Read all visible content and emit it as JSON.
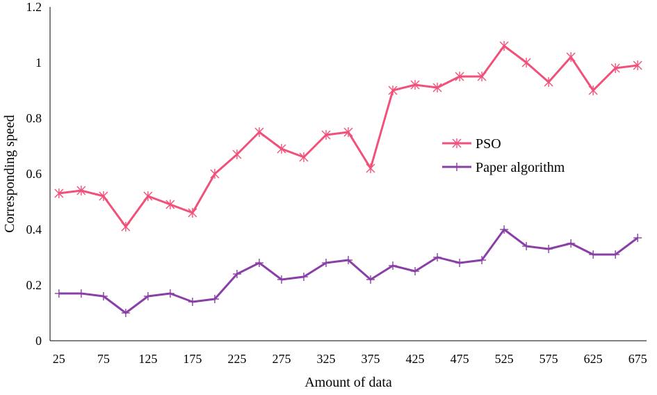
{
  "chart_data": {
    "type": "line",
    "title": "",
    "xlabel": "Amount of data",
    "ylabel": "Corresponding speed",
    "x": [
      25,
      50,
      75,
      100,
      125,
      150,
      175,
      200,
      225,
      250,
      275,
      300,
      325,
      350,
      375,
      400,
      425,
      450,
      475,
      500,
      525,
      550,
      575,
      600,
      625,
      650,
      675
    ],
    "x_tick_labels": [
      "25",
      "75",
      "125",
      "175",
      "225",
      "275",
      "325",
      "375",
      "425",
      "475",
      "525",
      "575",
      "625",
      "675"
    ],
    "y_tick_labels": [
      "0",
      "0.2",
      "0.4",
      "0.6",
      "0.8",
      "1",
      "1.2"
    ],
    "ylim": [
      0,
      1.2
    ],
    "grid": false,
    "legend_position": "center-right",
    "series": [
      {
        "name": "PSO",
        "color": "#f0507a",
        "marker": "asterisk",
        "values": [
          0.53,
          0.54,
          0.52,
          0.41,
          0.52,
          0.49,
          0.46,
          0.6,
          0.67,
          0.75,
          0.69,
          0.66,
          0.74,
          0.75,
          0.62,
          0.9,
          0.92,
          0.91,
          0.95,
          0.95,
          1.06,
          1.0,
          0.93,
          1.02,
          0.9,
          0.98,
          0.99
        ]
      },
      {
        "name": "Paper algorithm",
        "color": "#8a3fa8",
        "marker": "plus",
        "values": [
          0.17,
          0.17,
          0.16,
          0.1,
          0.16,
          0.17,
          0.14,
          0.15,
          0.24,
          0.28,
          0.22,
          0.23,
          0.28,
          0.29,
          0.22,
          0.27,
          0.25,
          0.3,
          0.28,
          0.29,
          0.4,
          0.34,
          0.33,
          0.35,
          0.31,
          0.31,
          0.37
        ]
      }
    ]
  }
}
